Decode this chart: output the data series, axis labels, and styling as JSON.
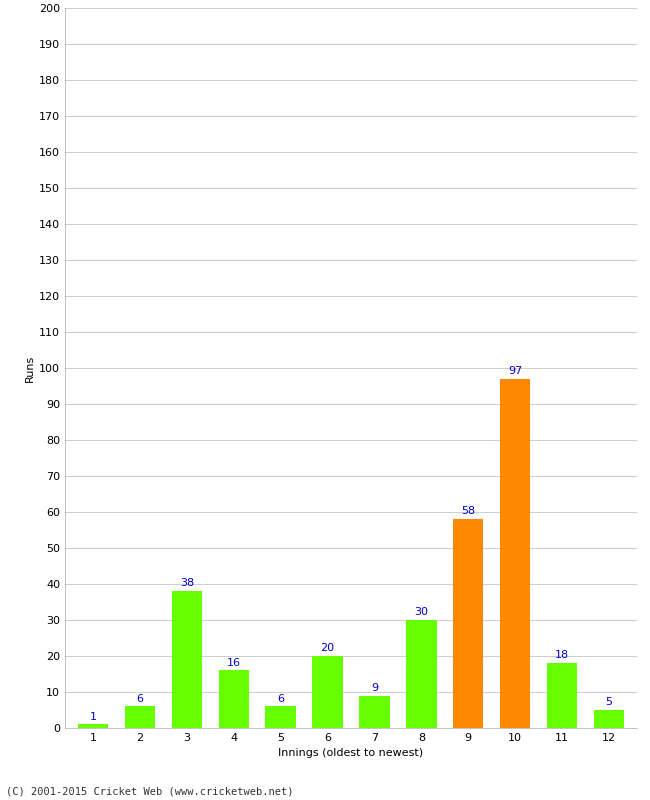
{
  "xlabel": "Innings (oldest to newest)",
  "ylabel": "Runs",
  "categories": [
    1,
    2,
    3,
    4,
    5,
    6,
    7,
    8,
    9,
    10,
    11,
    12
  ],
  "values": [
    1,
    6,
    38,
    16,
    6,
    20,
    9,
    30,
    58,
    97,
    18,
    5
  ],
  "bar_colors": [
    "#66ff00",
    "#66ff00",
    "#66ff00",
    "#66ff00",
    "#66ff00",
    "#66ff00",
    "#66ff00",
    "#66ff00",
    "#ff8800",
    "#ff8800",
    "#66ff00",
    "#66ff00"
  ],
  "ylim": [
    0,
    200
  ],
  "yticks": [
    0,
    10,
    20,
    30,
    40,
    50,
    60,
    70,
    80,
    90,
    100,
    110,
    120,
    130,
    140,
    150,
    160,
    170,
    180,
    190,
    200
  ],
  "label_color": "#0000cc",
  "label_fontsize": 8,
  "axis_fontsize": 8,
  "ylabel_fontsize": 8,
  "xlabel_fontsize": 8,
  "footer": "(C) 2001-2015 Cricket Web (www.cricketweb.net)",
  "background_color": "#ffffff",
  "grid_color": "#cccccc",
  "bar_width": 0.65
}
